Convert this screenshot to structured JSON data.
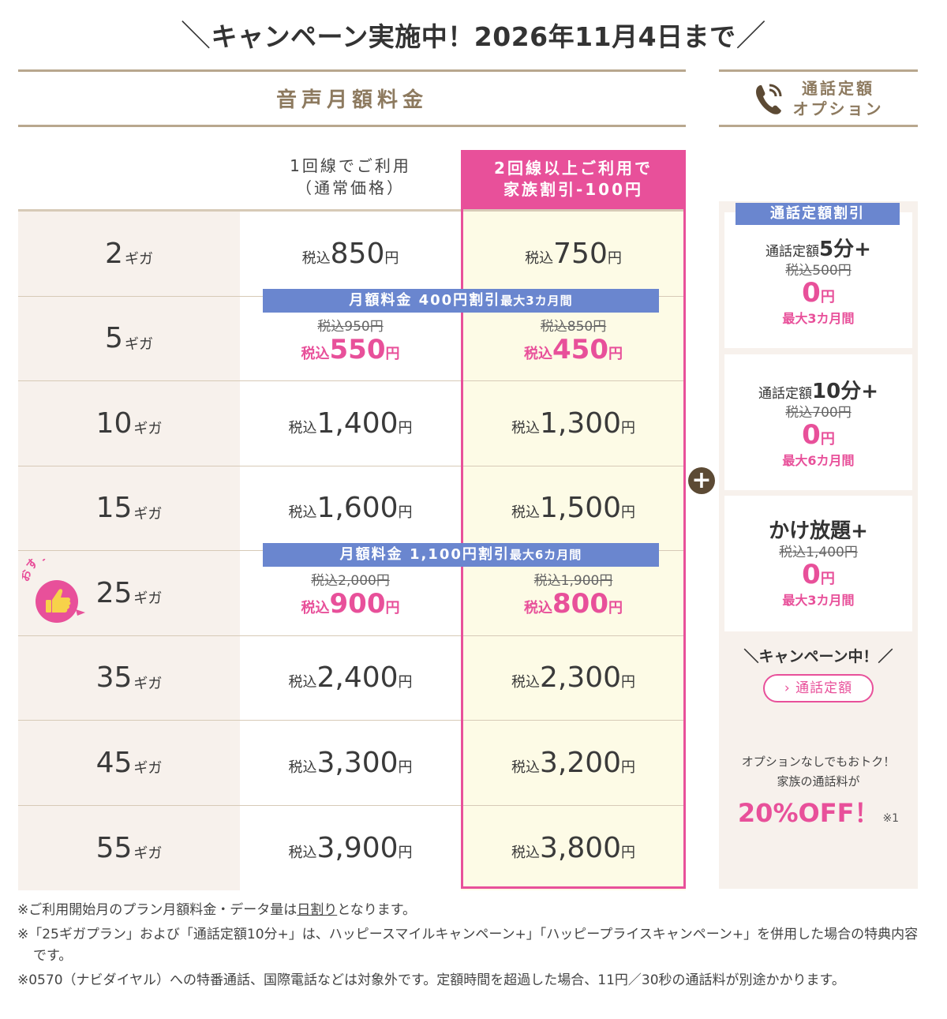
{
  "campaign": {
    "slash_left": "＼",
    "text": "キャンペーン実施中！2026年11月4日まで",
    "slash_right": "／"
  },
  "voice_header": "音声月額料金",
  "option_header": {
    "line1": "通話定額",
    "line2": "オプション",
    "icon": "phone-icon"
  },
  "columns": {
    "normal": {
      "line1": "1回線でご利用",
      "line2": "（通常価格）"
    },
    "family": {
      "line1": "2回線以上ご利用で",
      "line2": "家族割引-100円"
    }
  },
  "labels": {
    "tax": "税込",
    "yen": "円",
    "giga": "ギガ"
  },
  "plans": [
    {
      "gb": "2",
      "normal": "850",
      "family": "750"
    },
    {
      "gb": "5",
      "normal_old": "税込950円",
      "normal": "550",
      "family_old": "税込850円",
      "family": "450"
    },
    {
      "gb": "10",
      "normal": "1,400",
      "family": "1,300"
    },
    {
      "gb": "15",
      "normal": "1,600",
      "family": "1,500"
    },
    {
      "gb": "25",
      "normal_old": "税込2,000円",
      "normal": "900",
      "family_old": "税込1,900円",
      "family": "800"
    },
    {
      "gb": "35",
      "normal": "2,400",
      "family": "2,300"
    },
    {
      "gb": "45",
      "normal": "3,300",
      "family": "3,200"
    },
    {
      "gb": "55",
      "normal": "3,900",
      "family": "3,800"
    }
  ],
  "discount_bands": [
    {
      "main": "月額料金 400円割引",
      "small": "最大3カ月間"
    },
    {
      "main": "月額料金 1,100円割引",
      "small": "最大6カ月間"
    }
  ],
  "recommend_badge": "おすすめ",
  "plus_symbol": "+",
  "options": {
    "band": "通話定額割引",
    "cards": [
      {
        "prefix": "通話定額",
        "name": "5分+",
        "old": "税込500円",
        "free": "0",
        "yen": "円",
        "period": "最大3カ月間"
      },
      {
        "prefix": "通話定額",
        "name": "10分+",
        "old": "税込700円",
        "free": "0",
        "yen": "円",
        "period": "最大6カ月間"
      },
      {
        "prefix": "",
        "name": "かけ放題+",
        "old": "税込1,400円",
        "free": "0",
        "yen": "円",
        "period": "最大3カ月間"
      }
    ],
    "campaign_label": "＼キャンペーン中！／",
    "link_label": "通話定額",
    "note_line1": "オプションなしでもおトク！",
    "note_line2": "家族の通話料が",
    "off_text": "20%OFF！",
    "off_ref": "※1"
  },
  "footnotes": {
    "n1_pre": "※ご利用開始月のプラン月額料金・データ量は",
    "n1_link": "日割り",
    "n1_post": "となります。",
    "n2": "※「25ギガプラン」および「通話定額10分+」は、ハッピースマイルキャンペーン+」「ハッピープライスキャンペーン+」を併用した場合の特典内容です。",
    "n3": "※0570（ナビダイヤル）への特番通話、国際電話などは対象外です。定額時間を超過した場合、11円／30秒の通話料が別途かかります。"
  },
  "colors": {
    "pink": "#e8509a",
    "blue": "#6a86cf",
    "brown": "#8d7a5f",
    "beige": "#f7f1ec",
    "cream": "#fdfbe6"
  }
}
